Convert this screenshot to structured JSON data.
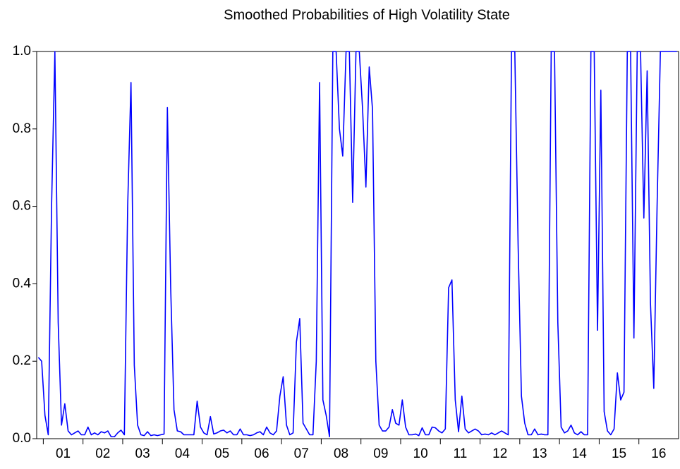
{
  "chart_data": {
    "type": "line",
    "title": "Smoothed Probabilities of High Volatility State",
    "color": "#0000ff",
    "categories": [
      null,
      null,
      null,
      null,
      null,
      null,
      null,
      null,
      "01",
      null,
      null,
      null,
      null,
      null,
      null,
      null,
      null,
      null,
      null,
      null,
      "02",
      null,
      null,
      null,
      null,
      null,
      null,
      null,
      null,
      null,
      null,
      null,
      "03",
      null,
      null,
      null,
      null,
      null,
      null,
      null,
      null,
      null,
      null,
      null,
      "04",
      null,
      null,
      null,
      null,
      null,
      null,
      null,
      null,
      null,
      null,
      null,
      "05",
      null,
      null,
      null,
      null,
      null,
      null,
      null,
      null,
      null,
      null,
      null,
      "06",
      null,
      null,
      null,
      null,
      null,
      null,
      null,
      null,
      null,
      null,
      null,
      "07",
      null,
      null,
      null,
      null,
      null,
      null,
      null,
      null,
      null,
      null,
      null,
      "08",
      null,
      null,
      null,
      null,
      null,
      null,
      null,
      null,
      null,
      null,
      null,
      "09",
      null,
      null,
      null,
      null,
      null,
      null,
      null,
      null,
      null,
      null,
      null,
      "10",
      null,
      null,
      null,
      null,
      null,
      null,
      null,
      null,
      null,
      null,
      null,
      "11",
      null,
      null,
      null,
      null,
      null,
      null,
      null,
      null,
      null,
      null,
      null,
      "12",
      null,
      null,
      null,
      null,
      null,
      null,
      null,
      null,
      null,
      null,
      null,
      "13",
      null,
      null,
      null,
      null,
      null,
      null,
      null,
      null,
      null,
      null,
      null,
      "14",
      null,
      null,
      null,
      null,
      null,
      null,
      null,
      null,
      null,
      null,
      null,
      "15",
      null,
      null,
      null,
      null,
      null,
      null,
      null,
      null,
      null,
      null,
      null,
      "16",
      null,
      null,
      null,
      null,
      null
    ],
    "values": [
      0.21,
      0.2,
      0.06,
      0.01,
      0.6,
      1.0,
      0.3,
      0.035,
      0.09,
      0.02,
      0.01,
      0.015,
      0.02,
      0.01,
      0.01,
      0.03,
      0.01,
      0.015,
      0.01,
      0.018,
      0.015,
      0.02,
      0.005,
      0.005,
      0.015,
      0.022,
      0.01,
      0.6,
      0.92,
      0.19,
      0.035,
      0.01,
      0.008,
      0.018,
      0.008,
      0.01,
      0.008,
      0.01,
      0.012,
      0.855,
      0.39,
      0.075,
      0.02,
      0.018,
      0.01,
      0.01,
      0.01,
      0.01,
      0.097,
      0.03,
      0.015,
      0.01,
      0.057,
      0.012,
      0.015,
      0.02,
      0.022,
      0.015,
      0.02,
      0.01,
      0.01,
      0.025,
      0.01,
      0.01,
      0.008,
      0.01,
      0.015,
      0.018,
      0.01,
      0.03,
      0.015,
      0.01,
      0.02,
      0.11,
      0.16,
      0.035,
      0.01,
      0.015,
      0.25,
      0.31,
      0.04,
      0.025,
      0.01,
      0.01,
      0.2,
      0.92,
      0.1,
      0.06,
      0.005,
      1.0,
      1.0,
      0.8,
      0.73,
      1.0,
      1.0,
      0.61,
      1.0,
      1.0,
      0.85,
      0.65,
      0.96,
      0.85,
      0.2,
      0.035,
      0.02,
      0.02,
      0.03,
      0.075,
      0.04,
      0.035,
      0.1,
      0.03,
      0.01,
      0.01,
      0.012,
      0.008,
      0.028,
      0.01,
      0.01,
      0.03,
      0.028,
      0.02,
      0.015,
      0.025,
      0.39,
      0.41,
      0.1,
      0.018,
      0.11,
      0.025,
      0.015,
      0.02,
      0.025,
      0.02,
      0.01,
      0.012,
      0.01,
      0.015,
      0.01,
      0.015,
      0.02,
      0.015,
      0.01,
      1.0,
      1.0,
      0.5,
      0.11,
      0.04,
      0.01,
      0.01,
      0.025,
      0.01,
      0.012,
      0.01,
      0.01,
      1.0,
      1.0,
      0.3,
      0.03,
      0.015,
      0.02,
      0.035,
      0.015,
      0.01,
      0.018,
      0.01,
      0.01,
      1.0,
      1.0,
      0.28,
      0.9,
      0.07,
      0.02,
      0.01,
      0.025,
      0.17,
      0.1,
      0.12,
      1.0,
      1.0,
      0.26,
      1.0,
      1.0,
      0.57,
      0.95,
      0.35,
      0.13,
      0.6,
      1.0,
      1.0,
      1.0,
      1.0,
      1.0,
      1.0
    ],
    "ylim": [
      0,
      1
    ],
    "yticks": [
      {
        "value": 0,
        "label": "0.0"
      },
      0.2,
      0.4,
      0.6,
      0.8,
      {
        "value": 1,
        "label": "1.0"
      }
    ]
  }
}
